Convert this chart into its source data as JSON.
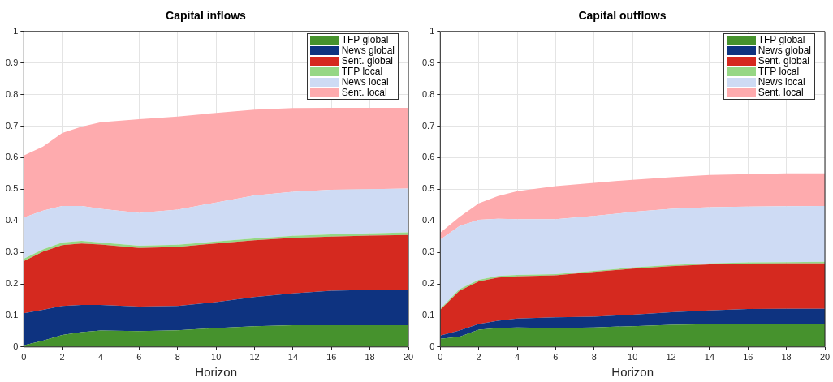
{
  "chart_data": [
    {
      "type": "area",
      "title": "Capital inflows",
      "xlabel": "Horizon",
      "stacked": true,
      "grid": true,
      "legend": "top right",
      "xlim": [
        0,
        20
      ],
      "xticks": [
        0,
        2,
        4,
        6,
        8,
        10,
        12,
        14,
        16,
        18,
        20
      ],
      "ylim": [
        0,
        1
      ],
      "yticks": [
        0,
        0.1,
        0.2,
        0.3,
        0.4,
        0.5,
        0.6,
        0.7,
        0.8,
        0.9,
        1
      ],
      "x": [
        0,
        1,
        2,
        3,
        4,
        6,
        8,
        10,
        12,
        14,
        16,
        18,
        20
      ],
      "series": [
        {
          "name": "TFP global",
          "color": "#46922d",
          "values": [
            0.005,
            0.02,
            0.038,
            0.047,
            0.052,
            0.05,
            0.053,
            0.06,
            0.066,
            0.069,
            0.069,
            0.069,
            0.069
          ]
        },
        {
          "name": "News global",
          "color": "#0e3380",
          "values": [
            0.102,
            0.098,
            0.092,
            0.086,
            0.081,
            0.078,
            0.077,
            0.082,
            0.092,
            0.101,
            0.109,
            0.112,
            0.113
          ]
        },
        {
          "name": "Sent. global",
          "color": "#d5291f",
          "values": [
            0.165,
            0.184,
            0.193,
            0.195,
            0.192,
            0.186,
            0.187,
            0.186,
            0.18,
            0.176,
            0.172,
            0.172,
            0.173
          ]
        },
        {
          "name": "TFP local",
          "color": "#96d785",
          "values": [
            0.008,
            0.007,
            0.008,
            0.008,
            0.006,
            0.007,
            0.007,
            0.006,
            0.006,
            0.006,
            0.007,
            0.007,
            0.008
          ]
        },
        {
          "name": "News local",
          "color": "#cedbf4",
          "values": [
            0.13,
            0.123,
            0.116,
            0.111,
            0.107,
            0.104,
            0.111,
            0.124,
            0.136,
            0.14,
            0.141,
            0.14,
            0.139
          ]
        },
        {
          "name": "Sent. local",
          "color": "#feabae",
          "values": [
            0.197,
            0.203,
            0.231,
            0.251,
            0.274,
            0.297,
            0.295,
            0.284,
            0.272,
            0.265,
            0.26,
            0.258,
            0.256
          ]
        }
      ]
    },
    {
      "type": "area",
      "title": "Capital outflows",
      "xlabel": "Horizon",
      "stacked": true,
      "grid": true,
      "legend": "top right",
      "xlim": [
        0,
        20
      ],
      "xticks": [
        0,
        2,
        4,
        6,
        8,
        10,
        12,
        14,
        16,
        18,
        20
      ],
      "ylim": [
        0,
        1
      ],
      "yticks": [
        0,
        0.1,
        0.2,
        0.3,
        0.4,
        0.5,
        0.6,
        0.7,
        0.8,
        0.9,
        1
      ],
      "x": [
        0,
        1,
        2,
        3,
        4,
        6,
        8,
        10,
        12,
        14,
        16,
        18,
        20
      ],
      "series": [
        {
          "name": "TFP global",
          "color": "#46922d",
          "values": [
            0.026,
            0.032,
            0.055,
            0.06,
            0.062,
            0.06,
            0.062,
            0.066,
            0.07,
            0.072,
            0.072,
            0.072,
            0.072
          ]
        },
        {
          "name": "News global",
          "color": "#0e3380",
          "values": [
            0.01,
            0.02,
            0.018,
            0.023,
            0.028,
            0.034,
            0.034,
            0.036,
            0.04,
            0.044,
            0.048,
            0.049,
            0.049
          ]
        },
        {
          "name": "Sent. global",
          "color": "#d5291f",
          "values": [
            0.082,
            0.126,
            0.135,
            0.137,
            0.134,
            0.133,
            0.142,
            0.146,
            0.146,
            0.146,
            0.144,
            0.144,
            0.144
          ]
        },
        {
          "name": "TFP local",
          "color": "#96d785",
          "values": [
            0.003,
            0.005,
            0.005,
            0.005,
            0.004,
            0.004,
            0.003,
            0.004,
            0.004,
            0.003,
            0.004,
            0.004,
            0.005
          ]
        },
        {
          "name": "News local",
          "color": "#cedbf4",
          "values": [
            0.219,
            0.2,
            0.19,
            0.181,
            0.177,
            0.174,
            0.174,
            0.176,
            0.178,
            0.178,
            0.177,
            0.177,
            0.177
          ]
        },
        {
          "name": "Sent. local",
          "color": "#feabae",
          "values": [
            0.022,
            0.029,
            0.052,
            0.072,
            0.089,
            0.105,
            0.105,
            0.102,
            0.1,
            0.102,
            0.103,
            0.104,
            0.103
          ]
        }
      ]
    }
  ]
}
